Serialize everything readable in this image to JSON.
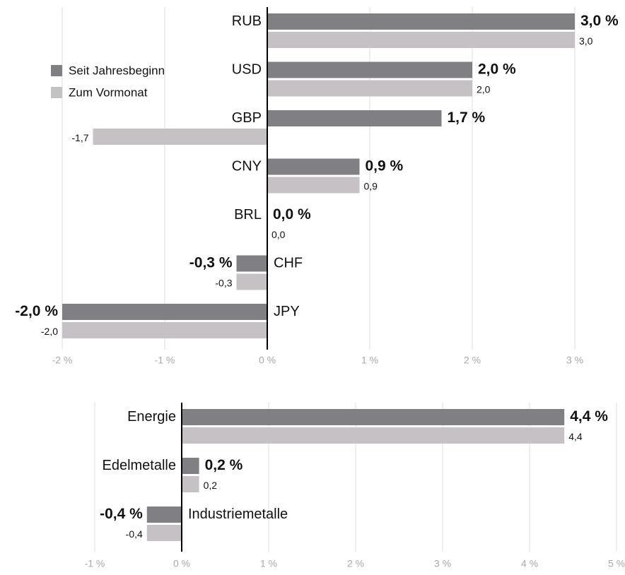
{
  "chart_data": [
    {
      "type": "bar",
      "orientation": "horizontal",
      "categories": [
        "RUB",
        "USD",
        "GBP",
        "CNY",
        "BRL",
        "CHF",
        "JPY"
      ],
      "series": [
        {
          "name": "Seit Jahresbeginn",
          "color": "#807f84",
          "values": [
            3.0,
            2.0,
            1.7,
            0.9,
            0.0,
            -0.3,
            -2.0
          ],
          "value_labels": [
            "3,0 %",
            "2,0 %",
            "1,7 %",
            "0,9 %",
            "0,0 %",
            "-0,3 %",
            "-2,0 %"
          ]
        },
        {
          "name": "Zum Vormonat",
          "color": "#c6c1c5",
          "values": [
            3.0,
            2.0,
            -1.7,
            0.9,
            0.0,
            -0.3,
            -2.0
          ],
          "value_labels": [
            "3,0",
            "2,0",
            "-1,7",
            "0,9",
            "0,0",
            "-0,3",
            "-2,0"
          ]
        }
      ],
      "xlim": [
        -2,
        3
      ],
      "xticks": [
        {
          "value": -2,
          "label": "-2 %"
        },
        {
          "value": -1,
          "label": "-1 %"
        },
        {
          "value": 0,
          "label": "0 %"
        },
        {
          "value": 1,
          "label": "1 %"
        },
        {
          "value": 2,
          "label": "2 %"
        },
        {
          "value": 3,
          "label": "3 %"
        }
      ],
      "grid": true,
      "legend": "upper left"
    },
    {
      "type": "bar",
      "orientation": "horizontal",
      "categories": [
        "Energie",
        "Edelmetalle",
        "Industriemetalle"
      ],
      "series": [
        {
          "color": "#807f84",
          "values": [
            4.4,
            0.2,
            -0.4
          ],
          "value_labels": [
            "4,4 %",
            "0,2 %",
            "-0,4 %"
          ]
        },
        {
          "color": "#c6c1c5",
          "values": [
            4.4,
            0.2,
            -0.4
          ],
          "value_labels": [
            "4,4",
            "0,2",
            "-0,4"
          ]
        }
      ],
      "xlim": [
        -1,
        5
      ],
      "xticks": [
        {
          "value": -1,
          "label": "-1 %"
        },
        {
          "value": 0,
          "label": "0 %"
        },
        {
          "value": 1,
          "label": "1 %"
        },
        {
          "value": 2,
          "label": "2 %"
        },
        {
          "value": 3,
          "label": "3 %"
        },
        {
          "value": 4,
          "label": "4 %"
        },
        {
          "value": 5,
          "label": "5 %"
        }
      ],
      "grid": true
    }
  ]
}
